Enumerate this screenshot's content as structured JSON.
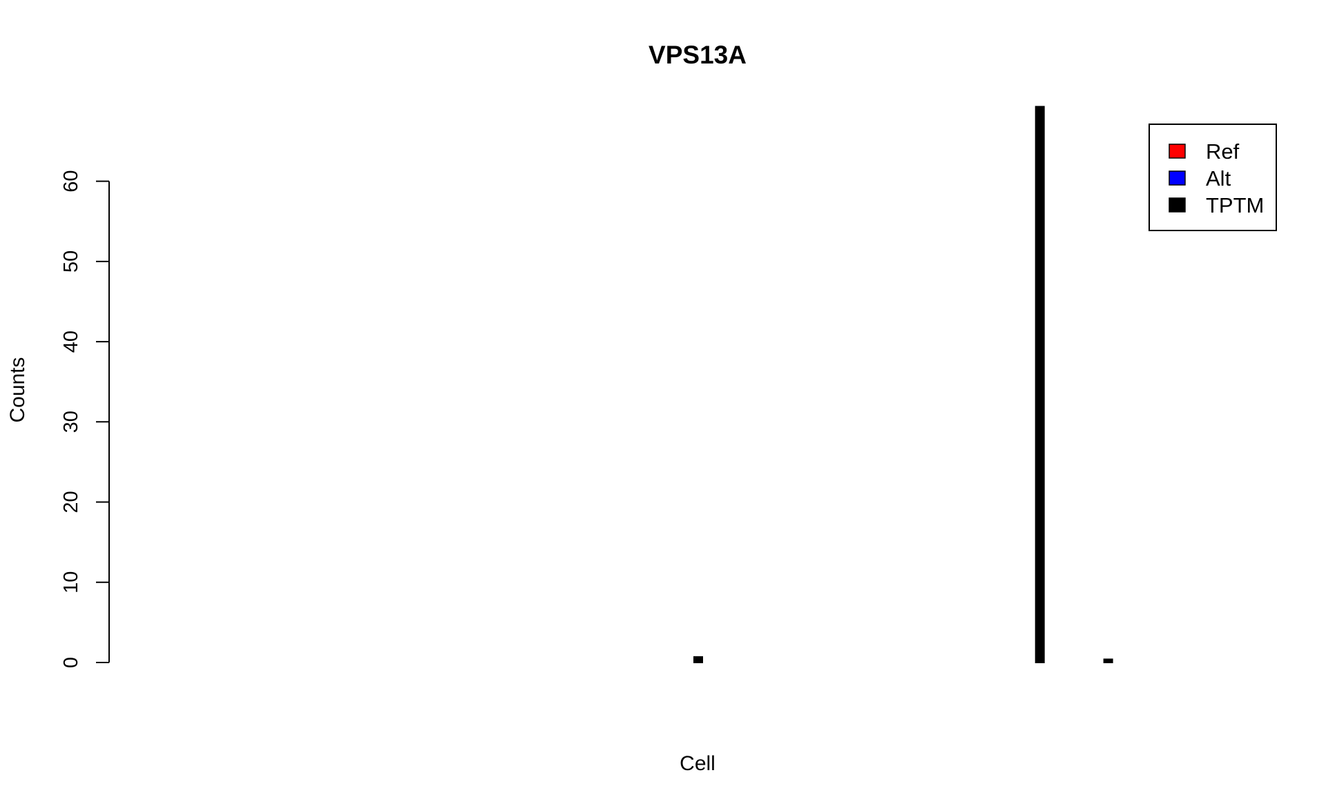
{
  "chart_data": {
    "type": "bar",
    "title": "VPS13A",
    "xlabel": "Cell",
    "ylabel": "Counts",
    "ylim": [
      0,
      69
    ],
    "yticks": [
      0,
      10,
      20,
      30,
      40,
      50,
      60
    ],
    "grid": false,
    "legend": {
      "placement": "top-right",
      "entries": [
        {
          "name": "Ref",
          "color": "#ff0000"
        },
        {
          "name": "Alt",
          "color": "#0000ff"
        },
        {
          "name": "TPTM",
          "color": "#000000"
        }
      ]
    },
    "n_cells": 17,
    "series": [
      {
        "name": "Ref",
        "color": "#ff0000",
        "values": [
          0,
          0,
          0,
          0,
          0,
          0,
          0,
          0,
          0,
          0,
          0,
          0,
          0,
          0,
          0,
          0,
          0
        ]
      },
      {
        "name": "Alt",
        "color": "#0000ff",
        "values": [
          0,
          0,
          0,
          0,
          0,
          0,
          0,
          0,
          0,
          0,
          0,
          0,
          0,
          0,
          0,
          0,
          0
        ]
      },
      {
        "name": "TPTM",
        "color": "#000000",
        "values": [
          null,
          null,
          null,
          0,
          null,
          null,
          null,
          null,
          0.7,
          null,
          null,
          0,
          null,
          69.3,
          0.4,
          0,
          null
        ]
      }
    ]
  }
}
